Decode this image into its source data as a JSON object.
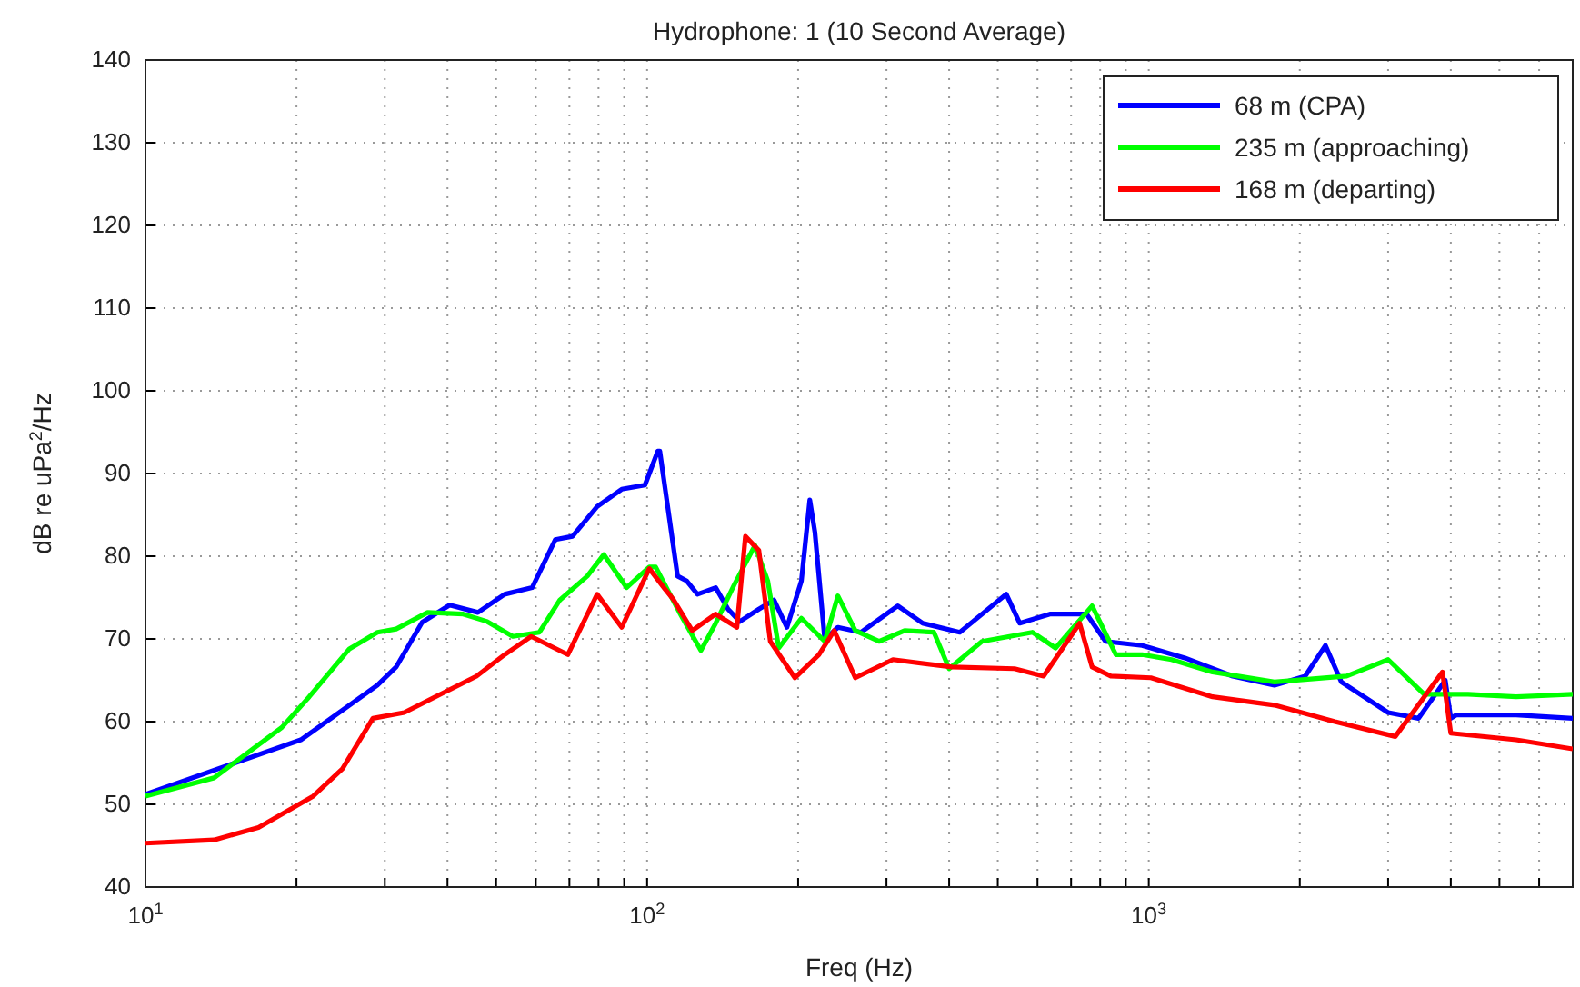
{
  "chart_data": {
    "type": "line",
    "title": "Hydrophone: 1 (10 Second Average)",
    "xlabel": "Freq (Hz)",
    "ylabel": "dB re uPa$^{2}$/Hz",
    "log": "x",
    "grid": true,
    "legend": "top right",
    "line_style": "solid",
    "marker": "none",
    "xlim": [
      10,
      7000
    ],
    "ylim": [
      40,
      140
    ],
    "xticks": [
      {
        "value": 10,
        "label": "10$^{1}$"
      },
      {
        "value": 20,
        "label": null
      },
      {
        "value": 30,
        "label": null
      },
      {
        "value": 40,
        "label": null
      },
      {
        "value": 50,
        "label": null
      },
      {
        "value": 60,
        "label": null
      },
      {
        "value": 70,
        "label": null
      },
      {
        "value": 80,
        "label": null
      },
      {
        "value": 90,
        "label": null
      },
      {
        "value": 100,
        "label": "10$^{2}$"
      },
      {
        "value": 200,
        "label": null
      },
      {
        "value": 300,
        "label": null
      },
      {
        "value": 400,
        "label": null
      },
      {
        "value": 500,
        "label": null
      },
      {
        "value": 600,
        "label": null
      },
      {
        "value": 700,
        "label": null
      },
      {
        "value": 800,
        "label": null
      },
      {
        "value": 900,
        "label": null
      },
      {
        "value": 1000,
        "label": "10$^{3}$"
      },
      {
        "value": 2000,
        "label": null
      },
      {
        "value": 3000,
        "label": null
      },
      {
        "value": 4000,
        "label": null
      },
      {
        "value": 5000,
        "label": null
      },
      {
        "value": 6000,
        "label": null
      }
    ],
    "yticks": [
      40,
      50,
      60,
      70,
      80,
      90,
      100,
      110,
      120,
      130,
      140
    ],
    "series": [
      {
        "name": "68 m (CPA)",
        "color": "#0000ff",
        "x": [
          10,
          20.4,
          29,
          31.6,
          35.6,
          40.4,
          46,
          52,
          59,
          65.6,
          71,
          79.5,
          89,
          99,
          105,
          106,
          115,
          120,
          126,
          137,
          145,
          153,
          167,
          179,
          190,
          203,
          211,
          216,
          226,
          240,
          267,
          316,
          354,
          420,
          520,
          553,
          635,
          752,
          820,
          970,
          1180,
          1470,
          1780,
          2050,
          2250,
          2420,
          3000,
          3450,
          3900,
          4000,
          4100,
          5400,
          7000
        ],
        "values": [
          51.2,
          57.8,
          64.4,
          66.6,
          72,
          74.1,
          73.2,
          75.4,
          76.2,
          82,
          82.4,
          86,
          88.1,
          88.6,
          92.7,
          92.7,
          77.6,
          77,
          75.4,
          76.2,
          73.6,
          72.1,
          73.6,
          74.7,
          71.4,
          77,
          86.8,
          82.9,
          69.9,
          71.4,
          70.8,
          74,
          71.9,
          70.8,
          75.4,
          71.9,
          73,
          73,
          69.7,
          69.2,
          67.7,
          65.5,
          64.4,
          65.5,
          69.2,
          64.8,
          61.1,
          60.4,
          65,
          60.4,
          60.8,
          60.8,
          60.4
        ]
      },
      {
        "name": "235 m (approaching)",
        "color": "#00ff00",
        "x": [
          10,
          13.7,
          18.7,
          21.2,
          25.5,
          29,
          31.6,
          36.5,
          43,
          48,
          54,
          61,
          67,
          76,
          82,
          91,
          101,
          104,
          116,
          128,
          137,
          149,
          164,
          174,
          183,
          203,
          226,
          240,
          260,
          290,
          326,
          373,
          400,
          465,
          586,
          652,
          771,
          860,
          970,
          1110,
          1340,
          1780,
          2480,
          3000,
          3540,
          4330,
          5400,
          7000
        ],
        "values": [
          51,
          53.2,
          59.3,
          63,
          68.8,
          70.8,
          71.2,
          73.2,
          73,
          72.1,
          70.3,
          70.8,
          74.7,
          77.6,
          80.2,
          76.2,
          78.7,
          78.7,
          73.2,
          68.6,
          71.9,
          76.5,
          81.3,
          77,
          68.9,
          72.5,
          69.7,
          75.2,
          71,
          69.7,
          71,
          70.8,
          66.4,
          69.7,
          70.8,
          68.9,
          74,
          68.1,
          68.1,
          67.5,
          66,
          64.8,
          65.5,
          67.5,
          63.3,
          63.3,
          63,
          63.3
        ]
      },
      {
        "name": "168 m (departing)",
        "color": "#ff0000",
        "x": [
          10,
          13.7,
          16.8,
          21.6,
          24.7,
          28.4,
          32.8,
          38.7,
          45.7,
          52,
          58.7,
          69.5,
          79.5,
          89,
          101,
          108,
          113,
          123,
          137,
          151,
          157,
          167,
          176,
          197,
          220,
          236,
          260,
          309,
          405,
          540,
          617,
          728,
          771,
          840,
          1010,
          1340,
          1780,
          2350,
          3100,
          3850,
          4000,
          5400,
          7000
        ],
        "values": [
          45.3,
          45.7,
          47.2,
          51,
          54.3,
          60.4,
          61.1,
          63.3,
          65.5,
          68.1,
          70.3,
          68.1,
          75.4,
          71.4,
          78.5,
          76.2,
          74.7,
          71,
          73,
          71.4,
          82.4,
          80.7,
          69.7,
          65.3,
          68.1,
          71,
          65.3,
          67.5,
          66.6,
          66.4,
          65.5,
          71.9,
          66.6,
          65.5,
          65.3,
          63,
          62,
          60,
          58.2,
          66,
          58.6,
          57.8,
          56.7
        ]
      }
    ]
  }
}
